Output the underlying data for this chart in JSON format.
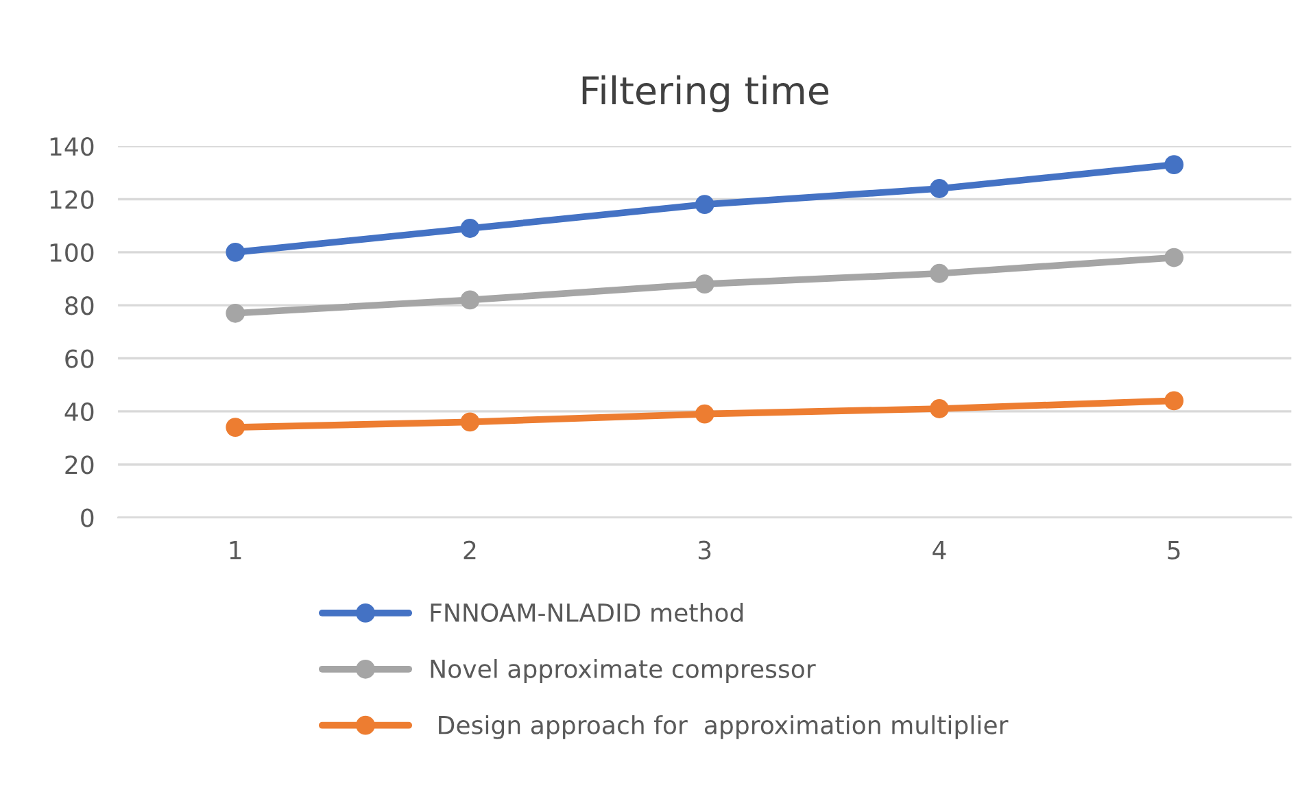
{
  "chart_data": {
    "type": "line",
    "title": "Filtering time",
    "categories": [
      "1",
      "2",
      "3",
      "4",
      "5"
    ],
    "series": [
      {
        "name": "FNNOAM-NLADID method",
        "color": "#4472c4",
        "values": [
          100,
          109,
          118,
          124,
          133
        ]
      },
      {
        "name": "Novel approximate compressor",
        "color": "#a5a5a5",
        "values": [
          77,
          82,
          88,
          92,
          98
        ]
      },
      {
        "name": " Design approach for  approximation multiplier",
        "color": "#ed7d31",
        "values": [
          34,
          36,
          39,
          41,
          44
        ]
      }
    ],
    "ylim": [
      0,
      140
    ],
    "yticks": [
      0,
      20,
      40,
      60,
      80,
      100,
      120,
      140
    ],
    "grid": "y",
    "legend": "bottom",
    "marker": "circle",
    "line_style": "solid"
  }
}
